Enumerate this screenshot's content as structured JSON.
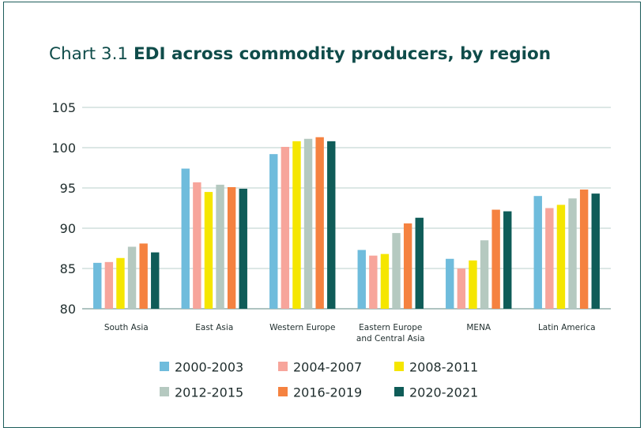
{
  "title_prefix": "Chart 3.1",
  "title_main": "EDI across commodity producers, by region",
  "chart_data": {
    "type": "bar",
    "categories": [
      "South Asia",
      "East Asia",
      "Western Europe",
      "Eastern Europe and Central Asia",
      "MENA",
      "Latin America"
    ],
    "category_lines": [
      [
        "South Asia"
      ],
      [
        "East Asia"
      ],
      [
        "Western Europe"
      ],
      [
        "Eastern Europe",
        "and Central Asia"
      ],
      [
        "MENA"
      ],
      [
        "Latin America"
      ]
    ],
    "series": [
      {
        "name": "2000-2003",
        "color": "#6fbcdc",
        "values": [
          85.7,
          97.4,
          99.2,
          87.3,
          86.2,
          94.0
        ]
      },
      {
        "name": "2004-2007",
        "color": "#f7a59b",
        "values": [
          85.8,
          95.7,
          100.1,
          86.6,
          85.0,
          92.5
        ]
      },
      {
        "name": "2008-2011",
        "color": "#f5e600",
        "values": [
          86.3,
          94.5,
          100.8,
          86.8,
          86.0,
          92.9
        ]
      },
      {
        "name": "2012-2015",
        "color": "#b5c9c0",
        "values": [
          87.7,
          95.4,
          101.1,
          89.4,
          88.5,
          93.7
        ]
      },
      {
        "name": "2016-2019",
        "color": "#f58240",
        "values": [
          88.1,
          95.1,
          101.3,
          90.6,
          92.3,
          94.8
        ]
      },
      {
        "name": "2020-2021",
        "color": "#0f5c58",
        "values": [
          87.0,
          94.9,
          100.8,
          91.3,
          92.1,
          94.3
        ]
      }
    ],
    "yticks": [
      80,
      85,
      90,
      95,
      100,
      105
    ],
    "ylim": [
      80,
      105
    ],
    "grid": true,
    "legend_position": "bottom"
  }
}
